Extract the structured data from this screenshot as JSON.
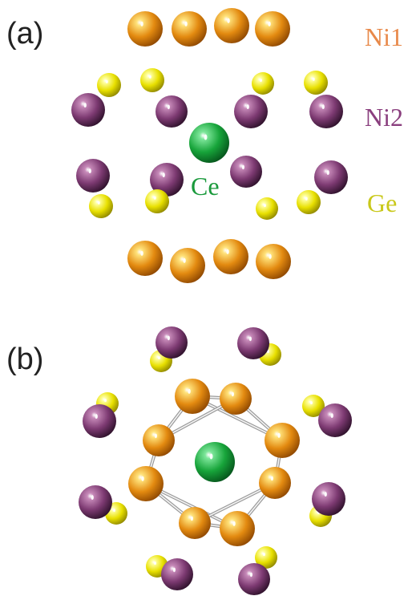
{
  "panels": {
    "a": {
      "label": "(a)"
    },
    "b": {
      "label": "(b)"
    }
  },
  "legend": {
    "ni1": {
      "label": "Ni1",
      "color": "#e8894a"
    },
    "ni2": {
      "label": "Ni2",
      "color": "#8a3f7e"
    },
    "ge": {
      "label": "Ge",
      "color": "#c9c81a"
    }
  },
  "center_label": {
    "text": "Ce",
    "color": "#1a9a3c"
  },
  "atom_colors": {
    "Ni1": {
      "base": "#e38a10",
      "light": "#ffe27a",
      "dark": "#8a4400"
    },
    "Ni2": {
      "base": "#7d3a72",
      "light": "#c78ab9",
      "dark": "#2a0f27"
    },
    "Ge": {
      "base": "#e8e000",
      "light": "#ffffa0",
      "dark": "#8a8200"
    },
    "Ce": {
      "base": "#17a43a",
      "light": "#7de69a",
      "dark": "#05501a"
    }
  },
  "bond_color": "#d0d0d0"
}
